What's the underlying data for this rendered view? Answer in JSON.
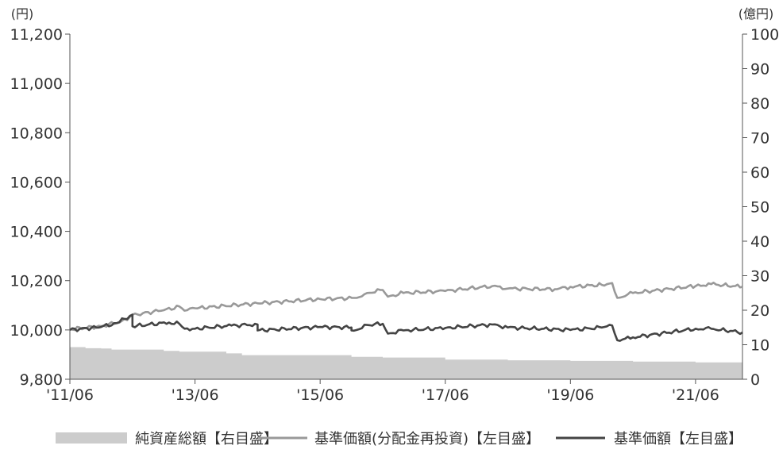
{
  "chart_data": {
    "type": "line",
    "left_axis": {
      "unit_label": "(円)",
      "ylim": [
        9800,
        11200
      ],
      "ticks": [
        9800,
        10000,
        10200,
        10400,
        10600,
        10800,
        11000,
        11200
      ],
      "tick_labels": [
        "9,800",
        "10,000",
        "10,200",
        "10,400",
        "10,600",
        "10,800",
        "11,000",
        "11,200"
      ]
    },
    "right_axis": {
      "unit_label": "(億円)",
      "ylim": [
        0,
        100
      ],
      "ticks": [
        0,
        10,
        20,
        30,
        40,
        50,
        60,
        70,
        80,
        90,
        100
      ],
      "tick_labels": [
        "0",
        "10",
        "20",
        "30",
        "40",
        "50",
        "60",
        "70",
        "80",
        "90",
        "100"
      ]
    },
    "x_axis": {
      "range": [
        "2011-06",
        "2022-03"
      ],
      "ticks": [
        "2011-06",
        "2013-06",
        "2015-06",
        "2017-06",
        "2019-06",
        "2021-06"
      ],
      "tick_labels": [
        "'11/06",
        "'13/06",
        "'15/06",
        "'17/06",
        "'19/06",
        "'21/06"
      ]
    },
    "series": [
      {
        "name": "純資産総額【右目盛】",
        "kind": "area",
        "axis": "right",
        "color": "#cccccc",
        "points": [
          [
            "2011-06",
            9.3
          ],
          [
            "2011-08",
            9.3
          ],
          [
            "2011-09",
            9.0
          ],
          [
            "2011-12",
            8.9
          ],
          [
            "2012-02",
            8.6
          ],
          [
            "2012-12",
            8.2
          ],
          [
            "2013-03",
            8.0
          ],
          [
            "2013-12",
            7.5
          ],
          [
            "2014-03",
            7.0
          ],
          [
            "2015-12",
            6.5
          ],
          [
            "2016-06",
            6.3
          ],
          [
            "2017-06",
            5.7
          ],
          [
            "2018-06",
            5.5
          ],
          [
            "2019-06",
            5.3
          ],
          [
            "2020-06",
            5.1
          ],
          [
            "2021-06",
            4.9
          ],
          [
            "2022-03",
            4.9
          ]
        ]
      },
      {
        "name": "基準価額(分配金再投資)【左目盛】",
        "kind": "line",
        "axis": "left",
        "color": "#999999",
        "points": [
          [
            "2011-06",
            10003
          ],
          [
            "2011-12",
            10015
          ],
          [
            "2012-05",
            10040
          ],
          [
            "2012-06",
            10062
          ],
          [
            "2012-08",
            10068
          ],
          [
            "2012-12",
            10080
          ],
          [
            "2013-03",
            10095
          ],
          [
            "2013-04",
            10078
          ],
          [
            "2013-06",
            10088
          ],
          [
            "2014-06",
            10108
          ],
          [
            "2015-06",
            10125
          ],
          [
            "2016-01",
            10130
          ],
          [
            "2016-03",
            10150
          ],
          [
            "2016-06",
            10162
          ],
          [
            "2016-07",
            10135
          ],
          [
            "2016-10",
            10150
          ],
          [
            "2017-06",
            10158
          ],
          [
            "2018-03",
            10178
          ],
          [
            "2018-06",
            10168
          ],
          [
            "2019-03",
            10165
          ],
          [
            "2019-06",
            10175
          ],
          [
            "2019-12",
            10183
          ],
          [
            "2020-02",
            10190
          ],
          [
            "2020-03",
            10130
          ],
          [
            "2020-06",
            10150
          ],
          [
            "2021-06",
            10178
          ],
          [
            "2021-09",
            10186
          ],
          [
            "2022-03",
            10175
          ]
        ]
      },
      {
        "name": "基準価額【左目盛】",
        "kind": "line",
        "axis": "left",
        "color": "#444444",
        "points": [
          [
            "2011-06",
            10000
          ],
          [
            "2011-12",
            10012
          ],
          [
            "2012-03",
            10028
          ],
          [
            "2012-06",
            10062
          ],
          [
            "2012-06",
            10015
          ],
          [
            "2013-01",
            10030
          ],
          [
            "2013-03",
            10025
          ],
          [
            "2013-04",
            10005
          ],
          [
            "2013-06",
            10005
          ],
          [
            "2014-01",
            10018
          ],
          [
            "2014-06",
            10022
          ],
          [
            "2014-06",
            9998
          ],
          [
            "2015-06",
            10012
          ],
          [
            "2015-12",
            10010
          ],
          [
            "2015-12",
            9998
          ],
          [
            "2016-01",
            10000
          ],
          [
            "2016-03",
            10020
          ],
          [
            "2016-06",
            10025
          ],
          [
            "2016-07",
            9985
          ],
          [
            "2016-10",
            9998
          ],
          [
            "2017-06",
            10008
          ],
          [
            "2018-03",
            10022
          ],
          [
            "2018-06",
            10010
          ],
          [
            "2019-06",
            10000
          ],
          [
            "2019-12",
            10010
          ],
          [
            "2020-02",
            10018
          ],
          [
            "2020-03",
            9958
          ],
          [
            "2020-06",
            9970
          ],
          [
            "2021-06",
            10005
          ],
          [
            "2021-09",
            10005
          ],
          [
            "2022-03",
            9990
          ]
        ]
      }
    ],
    "legend": {
      "placement": "bottom",
      "entries": [
        "純資産総額【右目盛】",
        "基準価額(分配金再投資)【左目盛】",
        "基準価額【左目盛】"
      ]
    },
    "grid": false
  }
}
